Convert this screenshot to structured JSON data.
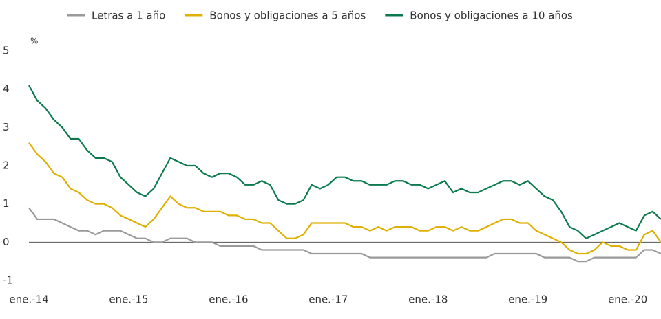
{
  "chart_data": {
    "type": "line",
    "y_label": "%",
    "x": [
      "2014-01",
      "2014-02",
      "2014-03",
      "2014-04",
      "2014-05",
      "2014-06",
      "2014-07",
      "2014-08",
      "2014-09",
      "2014-10",
      "2014-11",
      "2014-12",
      "2015-01",
      "2015-02",
      "2015-03",
      "2015-04",
      "2015-05",
      "2015-06",
      "2015-07",
      "2015-08",
      "2015-09",
      "2015-10",
      "2015-11",
      "2015-12",
      "2016-01",
      "2016-02",
      "2016-03",
      "2016-04",
      "2016-05",
      "2016-06",
      "2016-07",
      "2016-08",
      "2016-09",
      "2016-10",
      "2016-11",
      "2016-12",
      "2017-01",
      "2017-02",
      "2017-03",
      "2017-04",
      "2017-05",
      "2017-06",
      "2017-07",
      "2017-08",
      "2017-09",
      "2017-10",
      "2017-11",
      "2017-12",
      "2018-01",
      "2018-02",
      "2018-03",
      "2018-04",
      "2018-05",
      "2018-06",
      "2018-07",
      "2018-08",
      "2018-09",
      "2018-10",
      "2018-11",
      "2018-12",
      "2019-01",
      "2019-02",
      "2019-03",
      "2019-04",
      "2019-05",
      "2019-06",
      "2019-07",
      "2019-08",
      "2019-09",
      "2019-10",
      "2019-11",
      "2019-12",
      "2020-01",
      "2020-02",
      "2020-03",
      "2020-04",
      "2020-05"
    ],
    "xlim": [
      "2014-01",
      "2020-05"
    ],
    "xticks": [
      {
        "value": "2014-01",
        "label": "ene.-14"
      },
      {
        "value": "2015-01",
        "label": "ene.-15"
      },
      {
        "value": "2016-01",
        "label": "ene.-16"
      },
      {
        "value": "2017-01",
        "label": "ene.-17"
      },
      {
        "value": "2018-01",
        "label": "ene.-18"
      },
      {
        "value": "2019-01",
        "label": "ene.-19"
      },
      {
        "value": "2020-01",
        "label": "ene.-20"
      }
    ],
    "ylim": [
      -1,
      5
    ],
    "yticks": [
      -1,
      0,
      1,
      2,
      3,
      4,
      5
    ],
    "grid": false,
    "legend": "top",
    "series": [
      {
        "name": "Letras a 1 año",
        "color": "#9a9a9a",
        "values": [
          0.9,
          0.6,
          0.6,
          0.6,
          0.5,
          0.4,
          0.3,
          0.3,
          0.2,
          0.3,
          0.3,
          0.3,
          0.2,
          0.1,
          0.1,
          0.0,
          0.0,
          0.1,
          0.1,
          0.1,
          0.0,
          0.0,
          0.0,
          -0.1,
          -0.1,
          -0.1,
          -0.1,
          -0.1,
          -0.2,
          -0.2,
          -0.2,
          -0.2,
          -0.2,
          -0.2,
          -0.3,
          -0.3,
          -0.3,
          -0.3,
          -0.3,
          -0.3,
          -0.3,
          -0.4,
          -0.4,
          -0.4,
          -0.4,
          -0.4,
          -0.4,
          -0.4,
          -0.4,
          -0.4,
          -0.4,
          -0.4,
          -0.4,
          -0.4,
          -0.4,
          -0.4,
          -0.3,
          -0.3,
          -0.3,
          -0.3,
          -0.3,
          -0.3,
          -0.4,
          -0.4,
          -0.4,
          -0.4,
          -0.5,
          -0.5,
          -0.4,
          -0.4,
          -0.4,
          -0.4,
          -0.4,
          -0.4,
          -0.2,
          -0.2,
          -0.3
        ]
      },
      {
        "name": "Bonos y obligaciones a 5 años",
        "color": "#e0b000",
        "values": [
          2.6,
          2.3,
          2.1,
          1.8,
          1.7,
          1.4,
          1.3,
          1.1,
          1.0,
          1.0,
          0.9,
          0.7,
          0.6,
          0.5,
          0.4,
          0.6,
          0.9,
          1.2,
          1.0,
          0.9,
          0.9,
          0.8,
          0.8,
          0.8,
          0.7,
          0.7,
          0.6,
          0.6,
          0.5,
          0.5,
          0.3,
          0.1,
          0.1,
          0.2,
          0.5,
          0.5,
          0.5,
          0.5,
          0.5,
          0.4,
          0.4,
          0.3,
          0.4,
          0.3,
          0.4,
          0.4,
          0.4,
          0.3,
          0.3,
          0.4,
          0.4,
          0.3,
          0.4,
          0.3,
          0.3,
          0.4,
          0.5,
          0.6,
          0.6,
          0.5,
          0.5,
          0.3,
          0.2,
          0.1,
          0.0,
          -0.2,
          -0.3,
          -0.3,
          -0.2,
          0.0,
          -0.1,
          -0.1,
          -0.2,
          -0.2,
          0.2,
          0.3,
          0.0
        ]
      },
      {
        "name": "Bonos y obligaciones a 10 años",
        "color": "#0b7a4e",
        "values": [
          4.1,
          3.7,
          3.5,
          3.2,
          3.0,
          2.7,
          2.7,
          2.4,
          2.2,
          2.2,
          2.1,
          1.7,
          1.5,
          1.3,
          1.2,
          1.4,
          1.8,
          2.2,
          2.1,
          2.0,
          2.0,
          1.8,
          1.7,
          1.8,
          1.8,
          1.7,
          1.5,
          1.5,
          1.6,
          1.5,
          1.1,
          1.0,
          1.0,
          1.1,
          1.5,
          1.4,
          1.5,
          1.7,
          1.7,
          1.6,
          1.6,
          1.5,
          1.5,
          1.5,
          1.6,
          1.6,
          1.5,
          1.5,
          1.4,
          1.5,
          1.6,
          1.3,
          1.4,
          1.3,
          1.3,
          1.4,
          1.5,
          1.6,
          1.6,
          1.5,
          1.6,
          1.4,
          1.2,
          1.1,
          0.8,
          0.4,
          0.3,
          0.1,
          0.2,
          0.3,
          0.4,
          0.5,
          0.4,
          0.3,
          0.7,
          0.8,
          0.6
        ]
      }
    ]
  }
}
